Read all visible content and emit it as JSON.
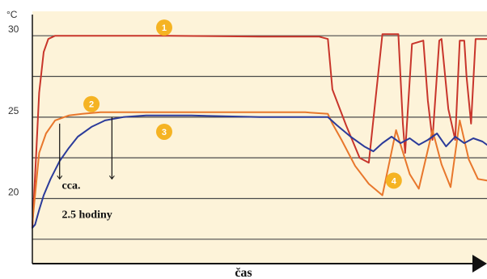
{
  "chart_data": {
    "type": "line",
    "ylabel": "°C",
    "xlabel": "čas",
    "ylim": [
      16.0,
      31.5
    ],
    "xlim": [
      0,
      100
    ],
    "yticks": [
      20,
      25,
      30
    ],
    "grid": true,
    "badges": [
      {
        "label": "1",
        "x": 29.0,
        "y": 30.5
      },
      {
        "label": "2",
        "x": 13.0,
        "y": 25.8
      },
      {
        "label": "3",
        "x": 29.0,
        "y": 24.1
      },
      {
        "label": "4",
        "x": 79.5,
        "y": 21.1
      }
    ],
    "annotations": [
      {
        "text": "cca.",
        "x": 6.5,
        "y": 20.6
      },
      {
        "text": "2.5 hodiny",
        "x": 6.5,
        "y": 18.8
      }
    ],
    "markers": [
      {
        "x": 6.0,
        "y_from": 24.6,
        "y_to": 21.2
      },
      {
        "x": 17.5,
        "y_from": 25.0,
        "y_to": 21.2
      }
    ],
    "series": [
      {
        "color": "#c8352b",
        "x": [
          0,
          0.8,
          1.5,
          2.5,
          3.5,
          5,
          10,
          30,
          50,
          60,
          63,
          65,
          66,
          69,
          72,
          74,
          77,
          78,
          80.5,
          81.5,
          82,
          83.5,
          86,
          87,
          88,
          89.5,
          90,
          91.5,
          93,
          94,
          95,
          95.5,
          96.5,
          97.5,
          100
        ],
        "y": [
          18.2,
          22.5,
          26.5,
          29.0,
          29.8,
          30.0,
          30.0,
          30.0,
          29.95,
          29.95,
          29.95,
          29.8,
          26.7,
          24.5,
          22.5,
          22.2,
          30.1,
          30.1,
          30.1,
          24.6,
          22.8,
          29.5,
          29.7,
          26.0,
          23.6,
          29.7,
          29.8,
          25.5,
          23.6,
          29.7,
          29.7,
          27.5,
          24.6,
          29.8,
          29.8
        ]
      },
      {
        "color": "#e8772c",
        "x": [
          0,
          0.8,
          1.5,
          3,
          5,
          8,
          11,
          15,
          20,
          40,
          60,
          65,
          66,
          68,
          71,
          74,
          77,
          78.5,
          80,
          83,
          85,
          88,
          90,
          92,
          94,
          96,
          98,
          100
        ],
        "y": [
          18.5,
          20.8,
          22.8,
          24.0,
          24.8,
          25.1,
          25.2,
          25.3,
          25.3,
          25.3,
          25.3,
          25.2,
          24.6,
          23.6,
          22.0,
          20.9,
          20.2,
          22.2,
          24.2,
          21.5,
          20.6,
          24.2,
          22.1,
          20.7,
          24.8,
          22.4,
          21.2,
          21.1
        ]
      },
      {
        "color": "#2b3b9a",
        "x": [
          0,
          0.6,
          1,
          1.5,
          2.5,
          4,
          6,
          8,
          10,
          13,
          16,
          20,
          25,
          35,
          50,
          65,
          67,
          70,
          73,
          75,
          77,
          79,
          81,
          83,
          85,
          87,
          89,
          91,
          93,
          95,
          97,
          99,
          100
        ],
        "y": [
          18.2,
          18.4,
          18.8,
          19.3,
          20.2,
          21.2,
          22.3,
          23.1,
          23.8,
          24.4,
          24.8,
          25.0,
          25.1,
          25.1,
          25.0,
          25.0,
          24.5,
          23.8,
          23.2,
          22.9,
          23.4,
          23.8,
          23.4,
          23.7,
          23.3,
          23.6,
          24.0,
          23.2,
          23.8,
          23.4,
          23.7,
          23.5,
          23.3
        ]
      }
    ]
  }
}
